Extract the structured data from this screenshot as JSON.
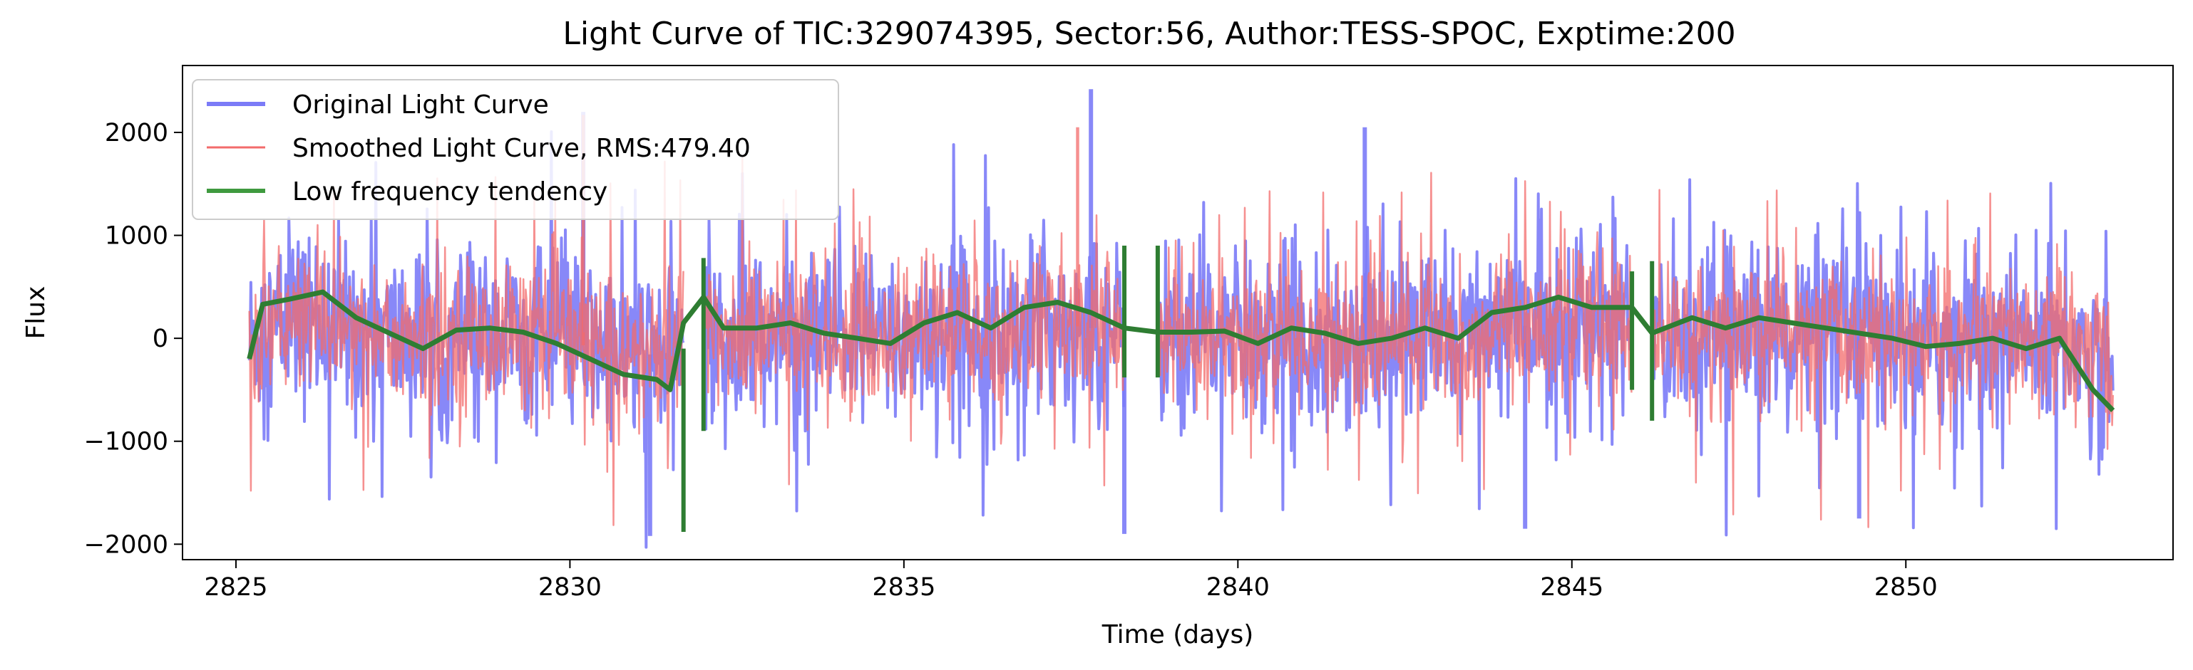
{
  "chart_data": {
    "type": "line",
    "title": "Light Curve of TIC:329074395, Sector:56, Author:TESS-SPOC, Exptime:200",
    "xlabel": "Time (days)",
    "ylabel": "Flux",
    "xlim": [
      2824.2,
      2854.0
    ],
    "ylim": [
      -2150,
      2650
    ],
    "x_ticks": [
      2825,
      2830,
      2835,
      2840,
      2845,
      2850
    ],
    "x_tick_labels": [
      "2825",
      "2830",
      "2835",
      "2840",
      "2845",
      "2850"
    ],
    "y_ticks": [
      -2000,
      -1000,
      0,
      1000,
      2000
    ],
    "y_tick_labels": [
      "−2000",
      "−1000",
      "0",
      "1000",
      "2000"
    ],
    "grid": false,
    "legend_position": "top-left",
    "data_gaps": [
      [
        2831.7,
        2832.0
      ],
      [
        2838.3,
        2838.8
      ],
      [
        2845.9,
        2846.2
      ]
    ],
    "series": [
      {
        "name": "Original Light Curve",
        "color": "#7b7bf7",
        "style": "noisy-band",
        "typical_range": [
          -1000,
          1000
        ],
        "notable_points": [
          {
            "x": 2837.8,
            "y": 2420
          },
          {
            "x": 2831.2,
            "y": -1920
          },
          {
            "x": 2838.3,
            "y": -1900
          },
          {
            "x": 2844.3,
            "y": -1850
          },
          {
            "x": 2849.3,
            "y": -1750
          },
          {
            "x": 2830.2,
            "y": 2200
          },
          {
            "x": 2841.9,
            "y": 2050
          }
        ]
      },
      {
        "name": "Smoothed Light Curve, RMS:479.40",
        "color": "#f36b6b",
        "style": "noisy-band",
        "typical_range": [
          -900,
          900
        ],
        "notable_points": [
          {
            "x": 2830.2,
            "y": 2170
          },
          {
            "x": 2837.6,
            "y": 2050
          }
        ]
      },
      {
        "name": "Low frequency tendency",
        "color": "#3f9a3f",
        "style": "trend",
        "x": [
          2825.2,
          2825.4,
          2825.8,
          2826.3,
          2826.8,
          2827.3,
          2827.8,
          2828.3,
          2828.8,
          2829.3,
          2829.8,
          2830.3,
          2830.8,
          2831.3,
          2831.5,
          2831.7,
          2832.0,
          2832.3,
          2832.8,
          2833.3,
          2833.8,
          2834.3,
          2834.8,
          2835.3,
          2835.8,
          2836.3,
          2836.8,
          2837.3,
          2837.8,
          2838.3,
          2838.8,
          2839.3,
          2839.8,
          2840.3,
          2840.8,
          2841.3,
          2841.8,
          2842.3,
          2842.8,
          2843.3,
          2843.8,
          2844.3,
          2844.8,
          2845.3,
          2845.9,
          2846.2,
          2846.8,
          2847.3,
          2847.8,
          2848.3,
          2848.8,
          2849.3,
          2849.8,
          2850.3,
          2850.8,
          2851.3,
          2851.8,
          2852.3,
          2852.8,
          2853.1
        ],
        "y": [
          -200,
          330,
          380,
          450,
          200,
          50,
          -100,
          80,
          100,
          60,
          -50,
          -200,
          -350,
          -400,
          -500,
          150,
          400,
          100,
          100,
          150,
          50,
          0,
          -50,
          150,
          250,
          100,
          300,
          350,
          250,
          100,
          60,
          60,
          70,
          -50,
          100,
          50,
          -50,
          0,
          100,
          0,
          250,
          300,
          400,
          300,
          300,
          50,
          200,
          100,
          200,
          150,
          100,
          50,
          0,
          -80,
          -50,
          0,
          -100,
          0,
          -500,
          -700
        ]
      }
    ]
  }
}
